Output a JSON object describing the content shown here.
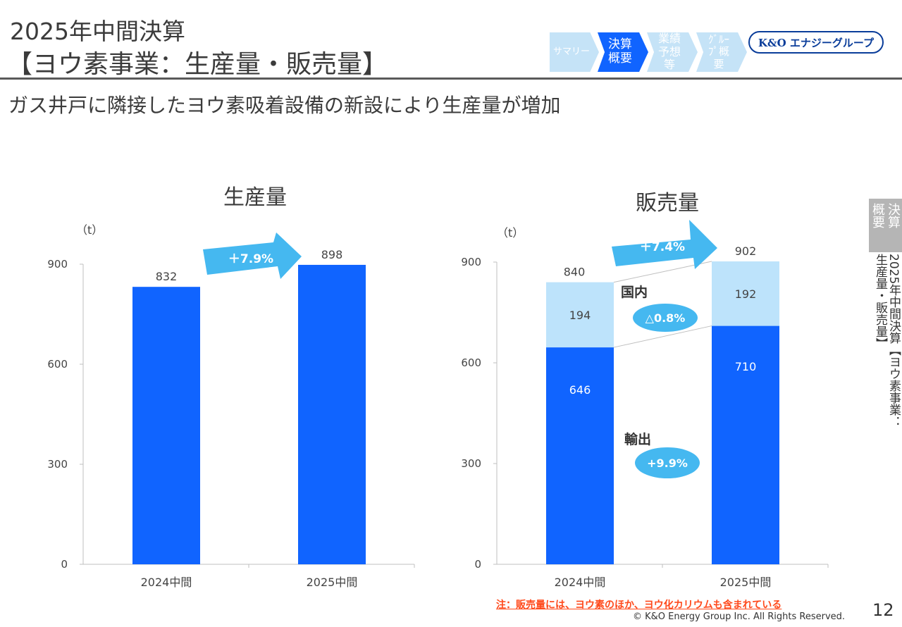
{
  "header": {
    "title_line1": "2025年中間決算",
    "title_line2": "【ヨウ素事業：生産量・販売量】",
    "subtitle": "ガス井戸に隣接したヨウ素吸着設備の新設により生産量が増加"
  },
  "nav": {
    "items": [
      {
        "label": "サマリー",
        "active": false
      },
      {
        "label": "決算概要",
        "active": true
      },
      {
        "label": "業績予想等",
        "active": false
      },
      {
        "label": "ｸﾞﾙｰﾌﾟ概要",
        "active": false
      }
    ],
    "logo_text": "K&O エナジーグループ"
  },
  "side_tab": {
    "box_label_right": "決算",
    "box_label_left": "概要",
    "vertical_text": "2025年中間決算【ヨウ素事業：生産量・販売量】"
  },
  "colors": {
    "export_blue": "#1064ff",
    "domestic_light": "#bde3fb",
    "arrow_cyan": "#45b8f0"
  },
  "chart_data": [
    {
      "type": "bar",
      "title": "生産量",
      "unit_label": "（t）",
      "categories": [
        "2024中間",
        "2025中間"
      ],
      "values": [
        832,
        898
      ],
      "ylim": [
        0,
        900
      ],
      "yticks": [
        0,
        300,
        600,
        900
      ],
      "growth_label": "＋7.9%",
      "grid": false
    },
    {
      "type": "bar",
      "stacked": true,
      "title": "販売量",
      "unit_label": "（t）",
      "categories": [
        "2024中間",
        "2025中間"
      ],
      "series": [
        {
          "name": "輸出",
          "values": [
            646,
            710
          ],
          "change_label": "+9.9%"
        },
        {
          "name": "国内",
          "values": [
            194,
            192
          ],
          "change_label": "△0.8%"
        }
      ],
      "totals": [
        840,
        902
      ],
      "ylim": [
        0,
        900
      ],
      "yticks": [
        0,
        300,
        600,
        900
      ],
      "growth_label": "＋7.4%",
      "grid": false
    }
  ],
  "footer": {
    "note": "注：販売量には、ヨウ素のほか、ヨウ化カリウムも含まれている",
    "copyright": "© K&O Energy Group Inc. All Rights Reserved.",
    "page_number": "12"
  }
}
